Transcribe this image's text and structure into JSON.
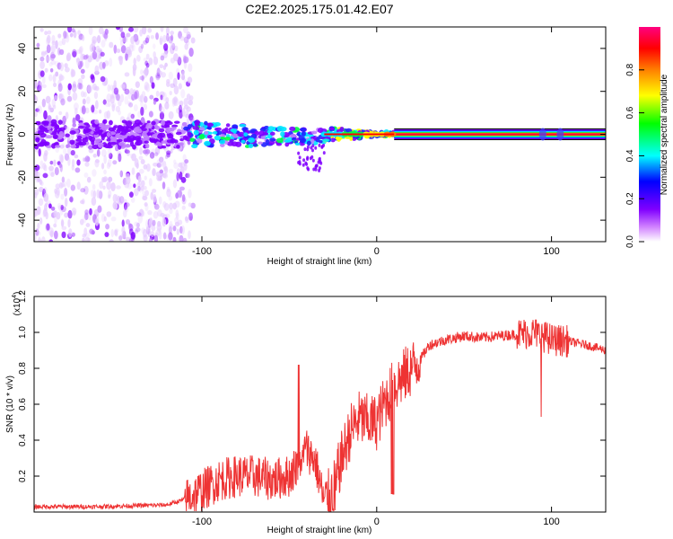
{
  "figure_title": "C2E2.2025.175.01.42.E07",
  "chart_data": [
    {
      "type": "heatmap",
      "xlabel": "Height of straight line (km)",
      "ylabel": "Frequency (Hz)",
      "xlim": [
        -196,
        131
      ],
      "ylim": [
        -50,
        50
      ],
      "x_ticks": [
        -100,
        0,
        100
      ],
      "y_ticks": [
        -40,
        -20,
        0,
        20,
        40
      ],
      "colorbar": {
        "label": "Normalized spectral amplitude",
        "range": [
          0,
          1
        ],
        "ticks": [
          "0.0",
          "0.2",
          "0.4",
          "0.6",
          "0.8"
        ],
        "tick_values": [
          0.0,
          0.2,
          0.4,
          0.6,
          0.8
        ],
        "colormap": [
          "#ffffff",
          "#8000ff",
          "#0000ff",
          "#00ffff",
          "#00ff00",
          "#ffff00",
          "#ff8000",
          "#ff0000",
          "#ff0080"
        ]
      },
      "features": {
        "noise_region_km": [
          -196,
          -115
        ],
        "mixed_region_km": [
          -115,
          -30
        ],
        "carrier_start_km": 10,
        "carrier_frequency_hz": 0,
        "carrier_peak_amplitude": 0.95
      },
      "grid": false
    },
    {
      "type": "line",
      "xlabel": "Height of straight line (km)",
      "ylabel": "SNR (10 * v/v)",
      "y_scale_label": "(x10",
      "y_scale_exponent": "4",
      "y_scale_suffix": ")",
      "xlim": [
        -196,
        131
      ],
      "ylim": [
        0,
        1.2
      ],
      "x_ticks": [
        -100,
        0,
        100
      ],
      "y_ticks": [
        0.2,
        0.4,
        0.6,
        0.8,
        1.0,
        1.2
      ],
      "y_tick_labels": [
        "0.2",
        "0.4",
        "0.6",
        "0.8",
        "1.0",
        "1.2"
      ],
      "series": [
        {
          "color": "#ee3333",
          "x": [
            -196,
            -180,
            -160,
            -140,
            -120,
            -110,
            -100,
            -90,
            -80,
            -70,
            -60,
            -50,
            -40,
            -35,
            -30,
            -25,
            -20,
            -15,
            -10,
            -5,
            0,
            5,
            10,
            15,
            20,
            25,
            30,
            40,
            50,
            60,
            70,
            80,
            90,
            95,
            100,
            110,
            120,
            131
          ],
          "y": [
            0.03,
            0.03,
            0.03,
            0.035,
            0.04,
            0.07,
            0.12,
            0.18,
            0.2,
            0.2,
            0.18,
            0.2,
            0.35,
            0.28,
            0.05,
            0.12,
            0.3,
            0.45,
            0.52,
            0.5,
            0.5,
            0.62,
            0.7,
            0.75,
            0.8,
            0.85,
            0.93,
            0.96,
            0.98,
            0.97,
            0.98,
            0.99,
            1.0,
            0.98,
            0.96,
            0.95,
            0.93,
            0.9
          ]
        }
      ],
      "grid": false
    }
  ]
}
